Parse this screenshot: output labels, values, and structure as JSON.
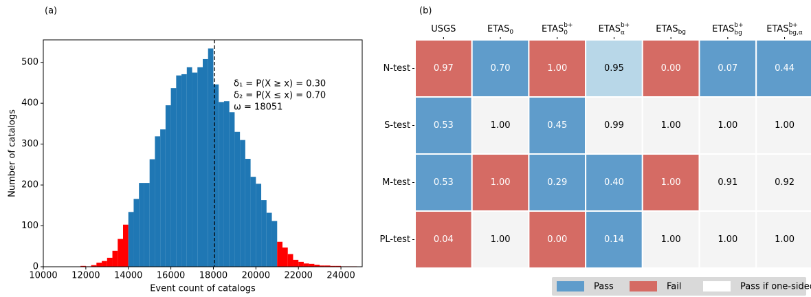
{
  "chart_data": [
    {
      "type": "histogram",
      "panel_label": "(a)",
      "xlabel": "Event count of catalogs",
      "ylabel": "Number of catalogs",
      "bins": [
        11750,
        12000,
        12250,
        12500,
        12750,
        13000,
        13250,
        13500,
        13750,
        14000,
        14250,
        14500,
        14750,
        15000,
        15250,
        15500,
        15750,
        16000,
        16250,
        16500,
        16750,
        17000,
        17250,
        17500,
        17750,
        18000,
        18250,
        18500,
        18750,
        19000,
        19250,
        19500,
        19750,
        20000,
        20250,
        20500,
        20750,
        21000,
        21250,
        21500,
        21750,
        22000,
        22250,
        22500,
        22750,
        23000,
        23250,
        23500,
        23750,
        24000,
        24250,
        24500,
        24750
      ],
      "counts": [
        2,
        1,
        4,
        10,
        14,
        22,
        39,
        68,
        103,
        134,
        166,
        205,
        205,
        263,
        319,
        336,
        395,
        437,
        468,
        471,
        488,
        475,
        488,
        508,
        534,
        446,
        403,
        405,
        378,
        330,
        310,
        264,
        220,
        203,
        163,
        132,
        112,
        61,
        47,
        31,
        17,
        12,
        8,
        7,
        5,
        3,
        3,
        2,
        2,
        1,
        1,
        1
      ],
      "colors": [
        "#ff0000",
        "#ff0000",
        "#ff0000",
        "#ff0000",
        "#ff0000",
        "#ff0000",
        "#ff0000",
        "#ff0000",
        "#ff0000",
        "#1f77b4",
        "#1f77b4",
        "#1f77b4",
        "#1f77b4",
        "#1f77b4",
        "#1f77b4",
        "#1f77b4",
        "#1f77b4",
        "#1f77b4",
        "#1f77b4",
        "#1f77b4",
        "#1f77b4",
        "#1f77b4",
        "#1f77b4",
        "#1f77b4",
        "#1f77b4",
        "#1f77b4",
        "#1f77b4",
        "#1f77b4",
        "#1f77b4",
        "#1f77b4",
        "#1f77b4",
        "#1f77b4",
        "#1f77b4",
        "#1f77b4",
        "#1f77b4",
        "#1f77b4",
        "#1f77b4",
        "#ff0000",
        "#ff0000",
        "#ff0000",
        "#ff0000",
        "#ff0000",
        "#ff0000",
        "#ff0000",
        "#ff0000",
        "#ff0000",
        "#ff0000",
        "#ff0000",
        "#ff0000",
        "#ff0000",
        "#ff0000",
        "#ff0000"
      ],
      "xlim": [
        10000,
        25000
      ],
      "xticks": [
        10000,
        12000,
        14000,
        16000,
        18000,
        20000,
        22000,
        24000
      ],
      "ylim": [
        0,
        555
      ],
      "yticks": [
        0,
        100,
        200,
        300,
        400,
        500
      ],
      "vline": 18051,
      "annotations": [
        "δ₁ = P(X ≥ x) = 0.30",
        "δ₂ = P(X ≤ x) = 0.70",
        "ω = 18051"
      ]
    },
    {
      "type": "heatmap",
      "panel_label": "(b)",
      "columns": [
        {
          "base": "USGS"
        },
        {
          "base": "ETAS",
          "sub": "0"
        },
        {
          "base": "ETAS",
          "sub": "0",
          "sup": "b+"
        },
        {
          "base": "ETAS",
          "sub": "α",
          "sup": "b+"
        },
        {
          "base": "ETAS",
          "sub": "bg"
        },
        {
          "base": "ETAS",
          "sub": "bg",
          "sup": "b+"
        },
        {
          "base": "ETAS",
          "sub": "bg,α",
          "sup": "b+"
        }
      ],
      "rows": [
        "N-test",
        "S-test",
        "M-test",
        "PL-test"
      ],
      "values": [
        [
          0.97,
          0.7,
          1,
          0.95,
          0,
          0.07,
          0.44
        ],
        [
          0.53,
          1,
          0.45,
          0.99,
          1,
          1,
          1
        ],
        [
          0.53,
          1,
          0.29,
          0.4,
          1,
          0.91,
          0.92
        ],
        [
          0.04,
          1,
          0,
          0.14,
          1,
          1,
          1
        ]
      ],
      "value_labels": [
        [
          "0.97",
          "0.70",
          "1.00",
          "0.95",
          "0.00",
          "0.07",
          "0.44"
        ],
        [
          "0.53",
          "1.00",
          "0.45",
          "0.99",
          "1.00",
          "1.00",
          "1.00"
        ],
        [
          "0.53",
          "1.00",
          "0.29",
          "0.40",
          "1.00",
          "0.91",
          "0.92"
        ],
        [
          "0.04",
          "1.00",
          "0.00",
          "0.14",
          "1.00",
          "1.00",
          "1.00"
        ]
      ],
      "colors": [
        [
          "#d56b64",
          "#5f9ccb",
          "#d56b64",
          "#b8d7e8",
          "#d56b64",
          "#5f9ccb",
          "#5f9ccb"
        ],
        [
          "#5f9ccb",
          "#f4f4f4",
          "#5f9ccb",
          "#f4f4f4",
          "#f4f4f4",
          "#f4f4f4",
          "#f4f4f4"
        ],
        [
          "#5f9ccb",
          "#d56b64",
          "#5f9ccb",
          "#5f9ccb",
          "#d56b64",
          "#f4f4f4",
          "#f4f4f4"
        ],
        [
          "#d56b64",
          "#f4f4f4",
          "#d56b64",
          "#5f9ccb",
          "#f4f4f4",
          "#f4f4f4",
          "#f4f4f4"
        ]
      ],
      "legend": [
        {
          "name": "Pass",
          "color": "#5f9ccb"
        },
        {
          "name": "Fail",
          "color": "#d56b64"
        },
        {
          "name": "Pass if one-sided",
          "color": "#ffffff"
        }
      ]
    }
  ]
}
